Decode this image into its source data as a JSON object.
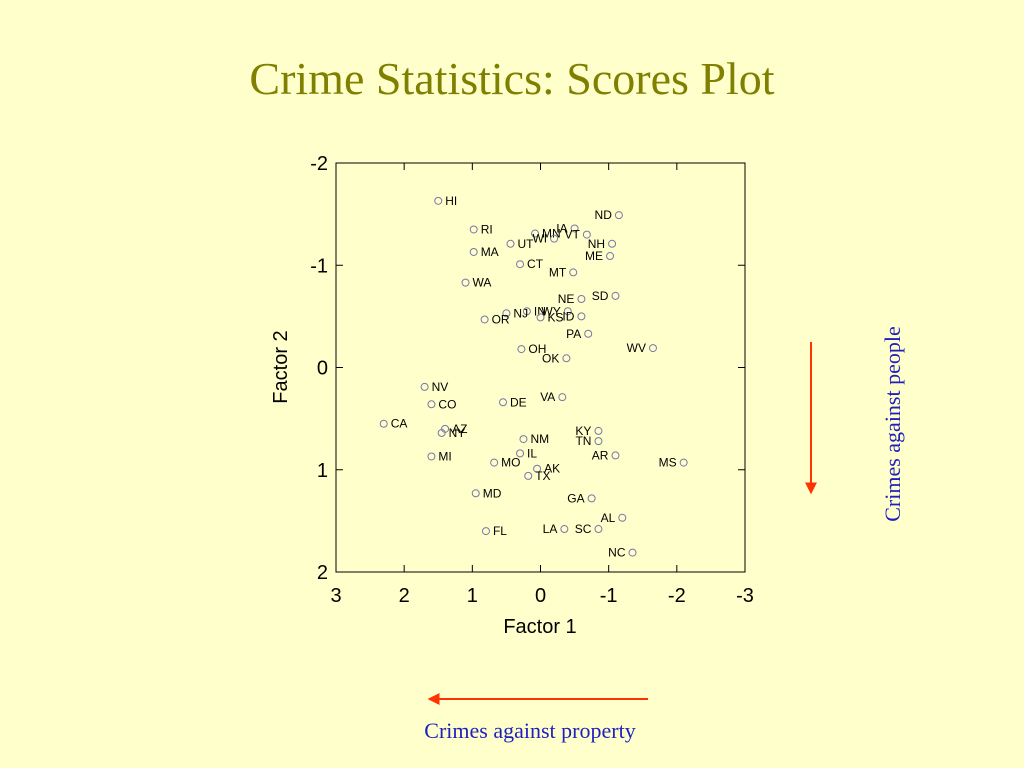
{
  "title": "Crime Statistics: Scores Plot",
  "annotations": {
    "vertical": "Crimes against people",
    "horizontal": "Crimes against property"
  },
  "colors": {
    "background": "#ffffcc",
    "title": "#808000",
    "annotation_text": "#1f1fbf",
    "arrow": "#ff3300",
    "marker": "#7777aa"
  },
  "chart_data": {
    "type": "scatter",
    "xlabel": "Factor 1",
    "ylabel": "Factor 2",
    "xlim": [
      3,
      -3
    ],
    "ylim": [
      -2,
      2
    ],
    "xticks": [
      3,
      2,
      1,
      0,
      -1,
      -2,
      -3
    ],
    "yticks": [
      -2,
      -1,
      0,
      1,
      2
    ],
    "x_reversed": true,
    "y_reversed": true,
    "grid": false,
    "points": [
      {
        "label": "HI",
        "x": 1.5,
        "y": -1.63
      },
      {
        "label": "ND",
        "x": -1.15,
        "y": -1.49
      },
      {
        "label": "RI",
        "x": 0.98,
        "y": -1.35
      },
      {
        "label": "MN",
        "x": 0.08,
        "y": -1.31
      },
      {
        "label": "IA",
        "x": -0.5,
        "y": -1.36
      },
      {
        "label": "UT",
        "x": 0.44,
        "y": -1.21
      },
      {
        "label": "WI",
        "x": -0.2,
        "y": -1.26
      },
      {
        "label": "VT",
        "x": -0.68,
        "y": -1.3
      },
      {
        "label": "NH",
        "x": -1.05,
        "y": -1.21
      },
      {
        "label": "MA",
        "x": 0.98,
        "y": -1.13
      },
      {
        "label": "ME",
        "x": -1.02,
        "y": -1.09
      },
      {
        "label": "CT",
        "x": 0.3,
        "y": -1.01
      },
      {
        "label": "MT",
        "x": -0.48,
        "y": -0.93
      },
      {
        "label": "WA",
        "x": 1.1,
        "y": -0.83
      },
      {
        "label": "SD",
        "x": -1.1,
        "y": -0.7
      },
      {
        "label": "NE",
        "x": -0.6,
        "y": -0.67
      },
      {
        "label": "IN",
        "x": 0.2,
        "y": -0.55
      },
      {
        "label": "WY",
        "x": -0.4,
        "y": -0.55
      },
      {
        "label": "NJ",
        "x": 0.5,
        "y": -0.53
      },
      {
        "label": "KS",
        "x": 0.0,
        "y": -0.49
      },
      {
        "label": "ID",
        "x": -0.6,
        "y": -0.5
      },
      {
        "label": "OR",
        "x": 0.82,
        "y": -0.47
      },
      {
        "label": "PA",
        "x": -0.7,
        "y": -0.33
      },
      {
        "label": "WV",
        "x": -1.65,
        "y": -0.19
      },
      {
        "label": "OH",
        "x": 0.28,
        "y": -0.18
      },
      {
        "label": "OK",
        "x": -0.38,
        "y": -0.09
      },
      {
        "label": "NV",
        "x": 1.7,
        "y": 0.19
      },
      {
        "label": "VA",
        "x": -0.32,
        "y": 0.29
      },
      {
        "label": "CO",
        "x": 1.6,
        "y": 0.36
      },
      {
        "label": "DE",
        "x": 0.55,
        "y": 0.34
      },
      {
        "label": "CA",
        "x": 2.3,
        "y": 0.55
      },
      {
        "label": "AZ",
        "x": 1.4,
        "y": 0.6
      },
      {
        "label": "NY",
        "x": 1.45,
        "y": 0.64
      },
      {
        "label": "KY",
        "x": -0.85,
        "y": 0.62
      },
      {
        "label": "TN",
        "x": -0.85,
        "y": 0.72
      },
      {
        "label": "NM",
        "x": 0.25,
        "y": 0.7
      },
      {
        "label": "IL",
        "x": 0.3,
        "y": 0.84
      },
      {
        "label": "AR",
        "x": -1.1,
        "y": 0.86
      },
      {
        "label": "MI",
        "x": 1.6,
        "y": 0.87
      },
      {
        "label": "MO",
        "x": 0.68,
        "y": 0.93
      },
      {
        "label": "MS",
        "x": -2.1,
        "y": 0.93
      },
      {
        "label": "AK",
        "x": 0.05,
        "y": 0.99
      },
      {
        "label": "TX",
        "x": 0.18,
        "y": 1.06
      },
      {
        "label": "MD",
        "x": 0.95,
        "y": 1.23
      },
      {
        "label": "GA",
        "x": -0.75,
        "y": 1.28
      },
      {
        "label": "AL",
        "x": -1.2,
        "y": 1.47
      },
      {
        "label": "LA",
        "x": -0.35,
        "y": 1.58
      },
      {
        "label": "SC",
        "x": -0.85,
        "y": 1.58
      },
      {
        "label": "FL",
        "x": 0.8,
        "y": 1.6
      },
      {
        "label": "NC",
        "x": -1.35,
        "y": 1.81
      }
    ]
  }
}
